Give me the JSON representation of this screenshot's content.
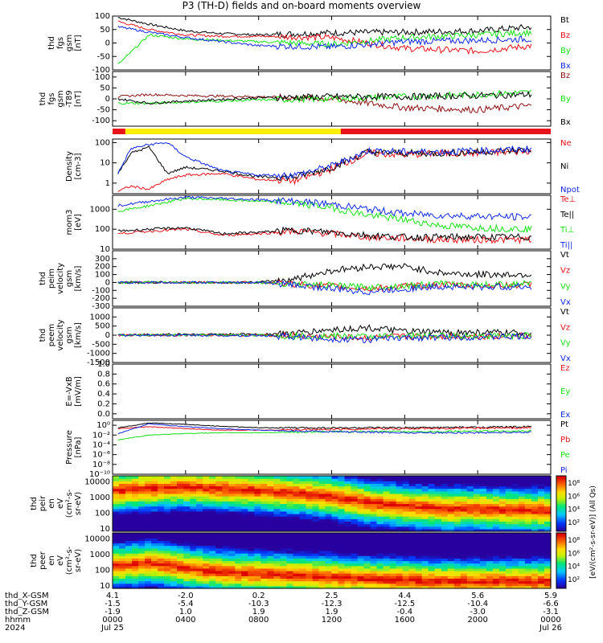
{
  "title": "P3 (TH-D) fields and on-board moments overview",
  "colors": {
    "black": "#000000",
    "red": "#e8121a",
    "green": "#17e117",
    "blue": "#1028e6",
    "darkred": "#8c1010",
    "yellow": "#ffee00"
  },
  "chart_data": [
    {
      "type": "line",
      "panel": "fgs-gsm",
      "ylabel": [
        "thd",
        "fgs",
        "gsm",
        "[nT]"
      ],
      "ylim": [
        -100,
        100
      ],
      "yticks": [
        100,
        50,
        0,
        -50,
        -100
      ],
      "series": [
        {
          "name": "Bt",
          "color": "#000000",
          "x": [
            0.3,
            2,
            4,
            6,
            8,
            12,
            16,
            20,
            23
          ],
          "y": [
            95,
            70,
            45,
            35,
            30,
            38,
            40,
            45,
            60
          ]
        },
        {
          "name": "Bz",
          "color": "#e8121a",
          "x": [
            0.3,
            2,
            4,
            6,
            8,
            12,
            16,
            20,
            23
          ],
          "y": [
            80,
            50,
            30,
            25,
            25,
            20,
            -20,
            -30,
            -10
          ]
        },
        {
          "name": "By",
          "color": "#17e117",
          "x": [
            0.3,
            2,
            4,
            6,
            8,
            12,
            16,
            20,
            23
          ],
          "y": [
            -80,
            30,
            15,
            10,
            5,
            -5,
            20,
            30,
            40
          ]
        },
        {
          "name": "Bx",
          "color": "#1028e6",
          "x": [
            0.3,
            2,
            4,
            6,
            8,
            12,
            16,
            20,
            23
          ],
          "y": [
            60,
            40,
            20,
            5,
            -10,
            -15,
            5,
            10,
            15
          ]
        }
      ]
    },
    {
      "type": "line",
      "panel": "fgs-gse-t89",
      "ylabel": [
        "thd",
        "fgs",
        "gsm",
        "-T89",
        "[nT]"
      ],
      "ylim": [
        -125,
        125
      ],
      "yticks": [
        100,
        50,
        0,
        -50,
        -100
      ],
      "series": [
        {
          "name": "Bz",
          "color": "#8c1010",
          "x": [
            0.3,
            2,
            4,
            8,
            12,
            16,
            20,
            23
          ],
          "y": [
            10,
            20,
            15,
            10,
            0,
            -40,
            -50,
            -30
          ]
        },
        {
          "name": "By",
          "color": "#17e117",
          "x": [
            0.3,
            2,
            4,
            8,
            12,
            16,
            20,
            23
          ],
          "y": [
            -20,
            -20,
            -15,
            -5,
            0,
            10,
            20,
            30
          ]
        },
        {
          "name": "Bx",
          "color": "#000000",
          "x": [
            0.3,
            2,
            4,
            8,
            12,
            16,
            20,
            23
          ],
          "y": [
            0,
            -20,
            -10,
            5,
            10,
            10,
            15,
            20
          ]
        }
      ]
    },
    {
      "type": "line",
      "panel": "density",
      "ylabel": [
        "Density",
        "[cm-3]"
      ],
      "yscale": "log",
      "ylim": [
        0.3,
        150
      ],
      "yticks": [
        100,
        10,
        1
      ],
      "ytick_labels": [
        "100",
        "10",
        "1"
      ],
      "series": [
        {
          "name": "Ne",
          "color": "#e8121a",
          "x": [
            0.3,
            1,
            2,
            3,
            4,
            6,
            8,
            10,
            12,
            14,
            16,
            18,
            20,
            22,
            23
          ],
          "y": [
            0.4,
            0.7,
            0.5,
            1.5,
            2.5,
            3,
            1.5,
            1.3,
            5,
            30,
            25,
            30,
            30,
            35,
            40
          ]
        },
        {
          "name": "Ni",
          "color": "#000000",
          "x": [
            0.3,
            1,
            2,
            3,
            4,
            6,
            8,
            10,
            12,
            14,
            16,
            18,
            20,
            22,
            23
          ],
          "y": [
            3,
            30,
            60,
            3,
            6,
            4,
            2,
            2,
            6,
            35,
            30,
            30,
            35,
            40,
            45
          ]
        },
        {
          "name": "Npot",
          "color": "#1028e6",
          "x": [
            0.3,
            1,
            2,
            3,
            4,
            6,
            8,
            10,
            12,
            14,
            16,
            18,
            20,
            22,
            23
          ],
          "y": [
            3,
            50,
            80,
            100,
            20,
            4,
            2.5,
            2.5,
            7,
            40,
            35,
            35,
            40,
            45,
            50
          ]
        }
      ]
    },
    {
      "type": "line",
      "panel": "moments-temperature",
      "ylabel": [
        "mom3",
        "[eV]"
      ],
      "yscale": "log",
      "ylim": [
        10,
        5000
      ],
      "yticks": [
        1000,
        100,
        10
      ],
      "ytick_labels": [
        "1000",
        "100",
        "10"
      ],
      "series": [
        {
          "name": "Te⊥",
          "color": "#e8121a",
          "x": [
            0.3,
            2,
            4,
            6,
            8,
            10,
            12,
            14,
            16,
            18,
            20,
            23
          ],
          "y": [
            60,
            80,
            100,
            50,
            60,
            80,
            60,
            40,
            35,
            30,
            30,
            30
          ]
        },
        {
          "name": "Te||",
          "color": "#000000",
          "x": [
            0.3,
            2,
            4,
            6,
            8,
            10,
            12,
            14,
            16,
            18,
            20,
            23
          ],
          "y": [
            80,
            100,
            120,
            60,
            70,
            90,
            70,
            50,
            40,
            40,
            40,
            40
          ]
        },
        {
          "name": "Ti⊥",
          "color": "#17e117",
          "x": [
            0.3,
            2,
            4,
            6,
            8,
            10,
            12,
            14,
            16,
            18,
            20,
            23
          ],
          "y": [
            800,
            1500,
            3500,
            3000,
            2500,
            2000,
            1200,
            500,
            300,
            150,
            120,
            100
          ]
        },
        {
          "name": "Ti||",
          "color": "#1028e6",
          "x": [
            0.3,
            2,
            4,
            6,
            8,
            10,
            12,
            14,
            16,
            18,
            20,
            23
          ],
          "y": [
            1500,
            2500,
            4000,
            3500,
            3000,
            2500,
            1800,
            1000,
            600,
            500,
            450,
            400
          ]
        }
      ]
    },
    {
      "type": "line",
      "panel": "peim-velocity",
      "ylabel": [
        "thd",
        "peim",
        "velocity",
        "gsm",
        "[km/s]"
      ],
      "ylim": [
        -300,
        400
      ],
      "yticks": [
        300,
        200,
        100,
        0,
        -100,
        -200,
        -300
      ],
      "series": [
        {
          "name": "Vt",
          "color": "#000000",
          "x": [
            0.3,
            4,
            8,
            10,
            12,
            14,
            16,
            18,
            20,
            23
          ],
          "y": [
            0,
            0,
            0,
            50,
            150,
            200,
            200,
            120,
            100,
            100
          ]
        },
        {
          "name": "Vz",
          "color": "#e8121a",
          "x": [
            0.3,
            4,
            8,
            10,
            12,
            14,
            16,
            18,
            20,
            23
          ],
          "y": [
            0,
            0,
            0,
            -20,
            -50,
            -80,
            -50,
            -30,
            -40,
            -30
          ]
        },
        {
          "name": "Vy",
          "color": "#17e117",
          "x": [
            0.3,
            4,
            8,
            10,
            12,
            14,
            16,
            18,
            20,
            23
          ],
          "y": [
            0,
            0,
            0,
            -20,
            -40,
            -60,
            -40,
            -20,
            -30,
            -20
          ]
        },
        {
          "name": "Vx",
          "color": "#1028e6",
          "x": [
            0.3,
            4,
            8,
            10,
            12,
            14,
            16,
            18,
            20,
            23
          ],
          "y": [
            0,
            0,
            0,
            -30,
            -80,
            -120,
            -80,
            -50,
            -60,
            -50
          ]
        }
      ]
    },
    {
      "type": "line",
      "panel": "peem-velocity",
      "ylabel": [
        "thd",
        "peem",
        "velocity",
        "gsm",
        "[km/s]"
      ],
      "ylim": [
        -1500,
        1500
      ],
      "yticks": [
        1000,
        500,
        0,
        -500,
        -1000,
        -1500
      ],
      "series": [
        {
          "name": "Vt",
          "color": "#000000",
          "x": [
            0.3,
            4,
            8,
            10,
            12,
            14,
            16,
            18,
            20,
            23
          ],
          "y": [
            0,
            50,
            50,
            100,
            300,
            400,
            200,
            150,
            150,
            100
          ]
        },
        {
          "name": "Vz",
          "color": "#e8121a",
          "x": [
            0.3,
            4,
            8,
            10,
            12,
            14,
            16,
            18,
            20,
            23
          ],
          "y": [
            0,
            0,
            0,
            -50,
            -100,
            -150,
            -80,
            -60,
            -60,
            -40
          ]
        },
        {
          "name": "Vy",
          "color": "#17e117",
          "x": [
            0.3,
            4,
            8,
            10,
            12,
            14,
            16,
            18,
            20,
            23
          ],
          "y": [
            0,
            0,
            0,
            -30,
            -50,
            -80,
            -50,
            -40,
            -40,
            -30
          ]
        },
        {
          "name": "Vx",
          "color": "#1028e6",
          "x": [
            0.3,
            4,
            8,
            10,
            12,
            14,
            16,
            18,
            20,
            23
          ],
          "y": [
            0,
            0,
            -20,
            -100,
            -200,
            -250,
            -150,
            -120,
            -100,
            -80
          ]
        }
      ]
    },
    {
      "type": "line",
      "panel": "e-field",
      "ylabel": [
        "E=-VxB",
        "[mV/m]"
      ],
      "ylim": [
        -0.1,
        1.0
      ],
      "yticks": [
        1.0,
        0.8,
        0.6,
        0.4,
        0.2,
        0.0,
        -0.2
      ],
      "ytick_labels": [
        "1.0",
        "0.8",
        "0.6",
        "0.4",
        "0.2",
        "0.0",
        "-0.2"
      ],
      "series": [
        {
          "name": "Ez",
          "color": "#e8121a",
          "x": [],
          "y": []
        },
        {
          "name": "Ey",
          "color": "#17e117",
          "x": [],
          "y": []
        },
        {
          "name": "Ex",
          "color": "#1028e6",
          "x": [],
          "y": []
        }
      ]
    },
    {
      "type": "line",
      "panel": "pressure",
      "ylabel": [
        "Pressure",
        "[nPa]"
      ],
      "yscale": "log",
      "ylim": [
        1e-10,
        10
      ],
      "yticks": [
        1,
        0.01,
        0.0001,
        1e-06,
        1e-08,
        1e-10
      ],
      "ytick_labels": [
        "10⁰",
        "10⁻²",
        "10⁻⁴",
        "10⁻⁶",
        "10⁻⁸",
        "10⁻¹⁰"
      ],
      "series": [
        {
          "name": "Pt",
          "color": "#000000",
          "x": [
            0.3,
            2,
            4,
            6,
            8,
            12,
            16,
            20,
            23
          ],
          "y": [
            0.3,
            3,
            1.5,
            0.6,
            0.3,
            0.3,
            0.3,
            0.4,
            0.5
          ]
        },
        {
          "name": "Pb",
          "color": "#e8121a",
          "x": [
            0.3,
            2,
            4,
            6,
            8,
            12,
            16,
            20,
            23
          ],
          "y": [
            0.2,
            0.5,
            0.2,
            0.1,
            0.1,
            0.15,
            0.2,
            0.25,
            0.3
          ]
        },
        {
          "name": "Pe",
          "color": "#17e117",
          "x": [
            0.3,
            2,
            4,
            6,
            8,
            12,
            16,
            20,
            23
          ],
          "y": [
            0.001,
            0.01,
            0.02,
            0.03,
            0.03,
            0.05,
            0.05,
            0.06,
            0.07
          ]
        },
        {
          "name": "Pi",
          "color": "#1028e6",
          "x": [
            0.3,
            2,
            4,
            6,
            8,
            12,
            16,
            20,
            23
          ],
          "y": [
            0.02,
            2,
            0.5,
            0.2,
            0.1,
            0.05,
            0.03,
            0.03,
            0.04
          ]
        }
      ]
    },
    {
      "type": "heatmap",
      "panel": "peir-en-eflux",
      "ylabel": [
        "thd",
        "peir",
        "en",
        "eV",
        "(cm²-s-",
        "sr-eV)"
      ],
      "yscale": "log",
      "ylim": [
        7,
        25000
      ],
      "yticks": [
        10000,
        1000,
        100,
        10
      ],
      "ytick_labels": [
        "10000",
        "1000",
        "100",
        "10"
      ],
      "colorbar_ticks": [
        "10⁸",
        "10⁶",
        "10⁴",
        "10²"
      ],
      "colorbar_label": "[eV/(cm²-s-sr-eV)] (All Qs)",
      "peak_energy": {
        "x": [
          0.3,
          2,
          4,
          6,
          8,
          10,
          12,
          14,
          16,
          18,
          20,
          23
        ],
        "y": [
          3000,
          4000,
          5000,
          4000,
          3000,
          2000,
          1200,
          500,
          300,
          200,
          200,
          150
        ]
      }
    },
    {
      "type": "heatmap",
      "panel": "peer-en-eflux",
      "ylabel": [
        "thd",
        "peer",
        "en",
        "eV",
        "(cm²-s-",
        "sr-eV)"
      ],
      "yscale": "log",
      "ylim": [
        7,
        25000
      ],
      "yticks": [
        10000,
        1000,
        100,
        10
      ],
      "ytick_labels": [
        "10000",
        "1000",
        "100",
        "10"
      ],
      "colorbar_ticks": [
        "10⁸",
        "10⁶",
        "10⁴",
        "10²"
      ],
      "colorbar_label": "[eV/(cm²-s-sr-eV)] (All Qs)",
      "peak_energy": {
        "x": [
          0.3,
          2,
          4,
          6,
          8,
          10,
          12,
          14,
          16,
          18,
          20,
          23
        ],
        "y": [
          200,
          300,
          150,
          80,
          60,
          50,
          40,
          30,
          25,
          20,
          20,
          20
        ]
      }
    }
  ],
  "mode_bar": {
    "segments": [
      {
        "start": 0,
        "end": 0.7,
        "color": "#e8121a"
      },
      {
        "start": 0.7,
        "end": 12.5,
        "color": "#ffee00"
      },
      {
        "start": 12.5,
        "end": 24,
        "color": "#e8121a"
      }
    ]
  },
  "x_axis": {
    "xlim": [
      0,
      24
    ],
    "ticks": [
      0,
      4,
      8,
      12,
      16,
      20,
      24
    ],
    "row_labels": [
      "thd_X-GSM",
      "thd_Y-GSM",
      "thd_Z-GSM",
      "hhmm",
      "2024"
    ],
    "columns": [
      [
        "4.1",
        "-2.0",
        "0.2",
        "2.5",
        "4.4",
        "5.6",
        "5.9"
      ],
      [
        "-1.5",
        "-5.4",
        "-10.3",
        "-12.3",
        "-12.5",
        "-10.4",
        "-6.6"
      ],
      [
        "-1.9",
        "1.0",
        "1.9",
        "1.9",
        "-0.4",
        "-3.0",
        "-3.1"
      ],
      [
        "0000",
        "0400",
        "0800",
        "1200",
        "1600",
        "2000",
        "0000"
      ],
      [
        "Jul 25",
        "",
        "",
        "",
        "",
        "",
        "Jul 26"
      ]
    ]
  }
}
